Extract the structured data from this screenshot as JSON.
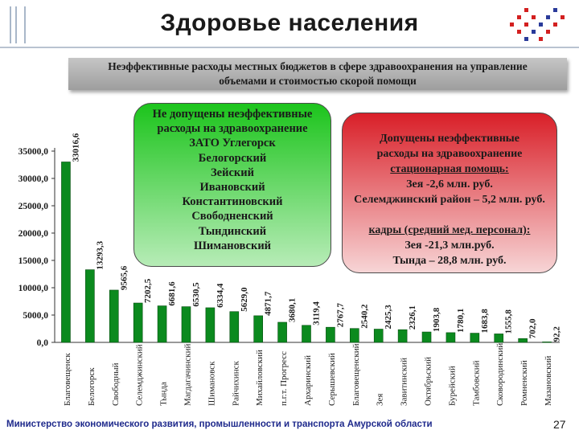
{
  "title": "Здоровье населения",
  "subtitle_lines": [
    "Неэффективные расходы местных бюджетов в сфере здравоохранения на управление",
    "объемами и стоимостью скорой помощи"
  ],
  "green_box_lines": [
    "Не допущены неэффективные",
    "расходы на здравоохранение",
    "ЗАТО Углегорск",
    "Белогорский",
    "Зейский",
    "Ивановский",
    "Константиновский",
    "Свободненский",
    "Тындинский",
    "Шимановский"
  ],
  "red_box": {
    "line1": "Допущены неэффективные",
    "line2": "расходы на здравоохранение",
    "line3": "стационарная помощь:",
    "line4": "Зея -2,6 млн. руб.",
    "line5": "Селемджинский район – 5,2 млн. руб.",
    "line6": "кадры (средний мед. персонал):",
    "line7": "Зея -21,3 млн.руб.",
    "line8": "Тында – 28,8 млн. руб."
  },
  "footer": "Министерство экономического развития, промышленности и транспорта Амурской области",
  "page_number": "27",
  "colors": {
    "bar": "#0b8a1e",
    "band": "#b0b0b0",
    "green_box_top": "#1cc41c",
    "red_box_top": "#d91f28",
    "footer_text": "#1f2a8c"
  },
  "chart_data": {
    "type": "bar",
    "title": "",
    "xlabel": "",
    "ylabel": "",
    "ylim": [
      0,
      35000
    ],
    "yticks": [
      "0,0",
      "5000,0",
      "10000,0",
      "15000,0",
      "20000,0",
      "25000,0",
      "30000,0",
      "35000,0"
    ],
    "categories": [
      "Благовещенск",
      "Белогорск",
      "Свободный",
      "Селемджинский",
      "Тында",
      "Магдагачинский",
      "Шимановск",
      "Райчихинск",
      "Михайловский",
      "п.г.т. Прогресс",
      "Архаринский",
      "Серышевский",
      "Благовещенский",
      "Зея",
      "Завитинский",
      "Октябрьский",
      "Бурейский",
      "Тамбовский",
      "Сковородинский",
      "Ромненский",
      "Мазановский"
    ],
    "values": [
      33016.6,
      13293.3,
      9565.6,
      7202.5,
      6681.6,
      6530.5,
      6334.4,
      5629.0,
      4871.7,
      3680.1,
      3119.4,
      2767.7,
      2540.2,
      2425.3,
      2326.1,
      1903.8,
      1780.1,
      1683.8,
      1555.8,
      702.0,
      92.2
    ],
    "value_labels": [
      "33016,6",
      "13293,3",
      "9565,6",
      "7202,5",
      "6681,6",
      "6530,5",
      "6334,4",
      "5629,0",
      "4871,7",
      "3680,1",
      "3119,4",
      "2767,7",
      "2540,2",
      "2425,3",
      "2326,1",
      "1903,8",
      "1780,1",
      "1683,8",
      "1555,8",
      "702,0",
      "92,2"
    ],
    "grid": false,
    "legend": false
  }
}
